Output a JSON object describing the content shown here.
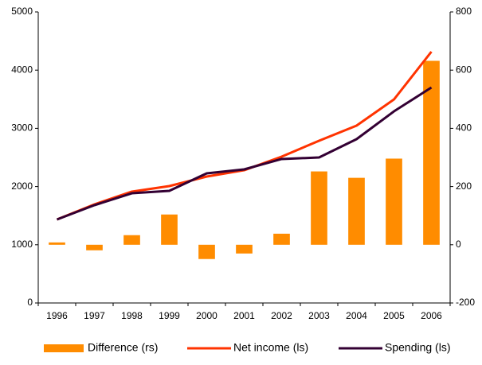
{
  "chart_data": {
    "type": "bar-line",
    "categories": [
      "1996",
      "1997",
      "1998",
      "1999",
      "2000",
      "2001",
      "2002",
      "2003",
      "2004",
      "2005",
      "2006"
    ],
    "series": [
      {
        "name": "Difference (rs)",
        "type": "bar",
        "axis": "y2",
        "color": "#ff8c00",
        "values": [
          8,
          -19,
          33,
          104,
          -49,
          -30,
          38,
          252,
          230,
          296,
          632
        ]
      },
      {
        "name": "Net income (ls)",
        "type": "line",
        "color": "#ff3300",
        "values": [
          1434,
          1694,
          1913,
          2008,
          2172,
          2281,
          2514,
          2787,
          3046,
          3497,
          4317
        ]
      },
      {
        "name": "Spending (ls)",
        "type": "line",
        "color": "#330033",
        "values": [
          1434,
          1680,
          1885,
          1926,
          2227,
          2295,
          2473,
          2500,
          2814,
          3292,
          3702
        ]
      }
    ],
    "ylim": [
      0,
      5000
    ],
    "yticks": [
      0,
      1000,
      2000,
      3000,
      4000,
      5000
    ],
    "y2lim": [
      -200,
      800
    ],
    "y2ticks": [
      -200,
      0,
      200,
      400,
      600,
      800
    ]
  }
}
